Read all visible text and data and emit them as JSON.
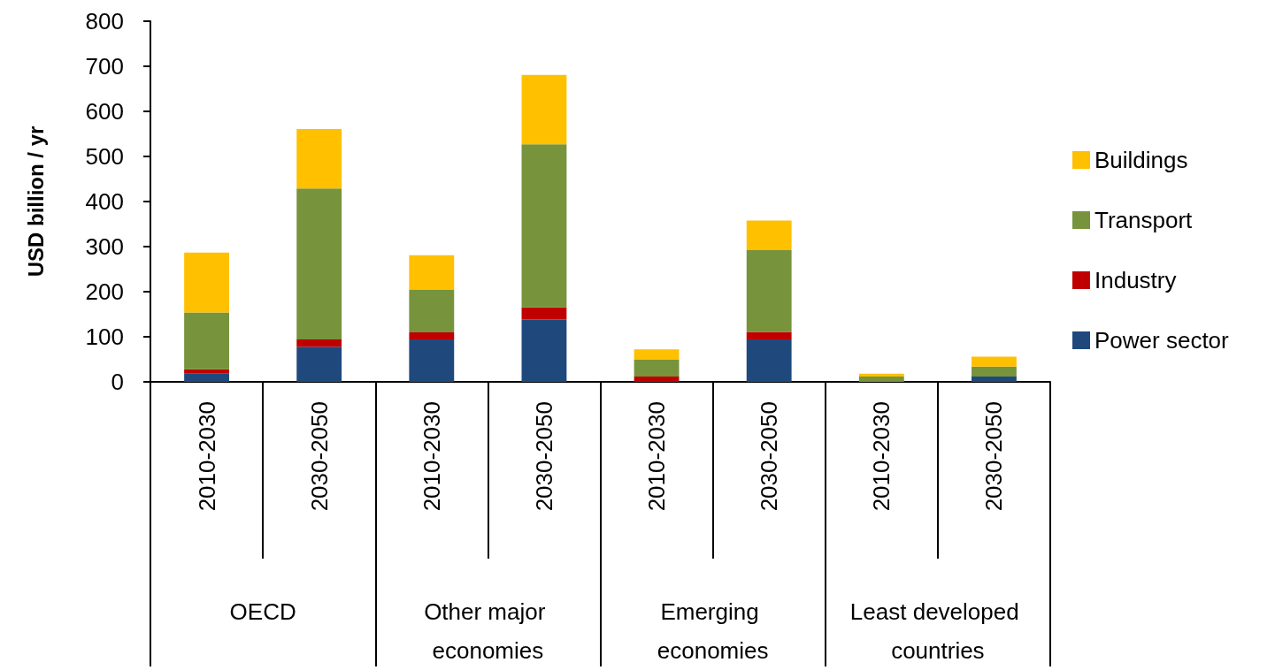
{
  "chart_data": {
    "type": "bar",
    "stacked": true,
    "ylabel": "USD billion / yr",
    "categories": [
      "2010-2030",
      "2030-2050",
      "2010-2030",
      "2030-2050",
      "2010-2030",
      "2030-2050",
      "2010-2030",
      "2030-2050"
    ],
    "annotations": [
      "OECD",
      "Other major economies",
      "Emerging economies",
      "Least developed countries"
    ],
    "series": [
      {
        "name": "Power sector",
        "color": "#1f497d",
        "values": [
          18,
          78,
          94,
          138,
          0,
          94,
          0,
          12
        ]
      },
      {
        "name": "Industry",
        "color": "#c00000",
        "values": [
          10,
          16,
          16,
          27,
          12,
          17,
          0,
          0
        ]
      },
      {
        "name": "Transport",
        "color": "#77933c",
        "values": [
          126,
          335,
          94,
          362,
          38,
          181,
          12,
          22
        ]
      },
      {
        "name": "Buildings",
        "color": "#ffc000",
        "values": [
          133,
          132,
          77,
          154,
          22,
          66,
          6,
          22
        ]
      }
    ],
    "ylim": [
      0,
      800
    ],
    "yticks": [
      0,
      100,
      200,
      300,
      400,
      500,
      600,
      700,
      800
    ],
    "legend": "right"
  }
}
